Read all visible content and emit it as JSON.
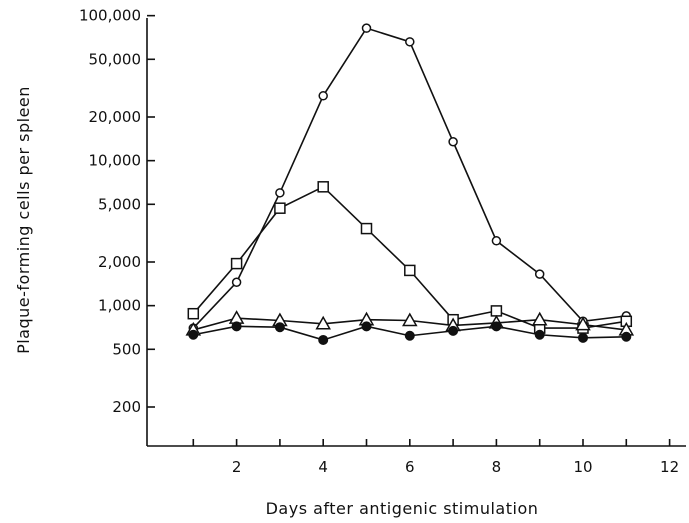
{
  "chart_data": {
    "type": "line",
    "title": "",
    "xlabel": "Days after antigenic stimulation",
    "ylabel": "Plaque-forming cells per spleen",
    "yscale": "log",
    "xlim": [
      0,
      12.7
    ],
    "ylim": [
      100,
      120000
    ],
    "grid": false,
    "legend": "none",
    "x_ticks": [
      2,
      4,
      6,
      8,
      10,
      12
    ],
    "x_tick_labels": [
      "2",
      "4",
      "6",
      "8",
      "10",
      "12"
    ],
    "y_ticks": [
      200,
      500,
      1000,
      2000,
      5000,
      10000,
      20000,
      50000,
      100000
    ],
    "y_tick_labels": [
      "200",
      "500",
      "1,000",
      "2,000",
      "5,000",
      "10,000",
      "20,000",
      "50,000",
      "100,000"
    ],
    "series": [
      {
        "marker": "open-circle",
        "color": "#111111",
        "x": [
          1,
          2,
          3,
          4,
          5,
          6,
          7,
          8,
          9,
          10,
          11
        ],
        "y": [
          700,
          1450,
          6000,
          28000,
          82000,
          66000,
          13500,
          2800,
          1650,
          780,
          850
        ]
      },
      {
        "marker": "open-square",
        "color": "#111111",
        "x": [
          1,
          2,
          3,
          4,
          5,
          6,
          7,
          8,
          9,
          10,
          11
        ],
        "y": [
          880,
          1950,
          4700,
          6600,
          3400,
          1750,
          800,
          920,
          700,
          700,
          780
        ]
      },
      {
        "marker": "open-triangle",
        "color": "#111111",
        "x": [
          1,
          2,
          3,
          4,
          5,
          6,
          7,
          8,
          9,
          10,
          11
        ],
        "y": [
          680,
          820,
          790,
          750,
          800,
          790,
          730,
          760,
          800,
          740,
          680
        ]
      },
      {
        "marker": "filled-circle",
        "color": "#111111",
        "x": [
          1,
          2,
          3,
          4,
          5,
          6,
          7,
          8,
          9,
          10,
          11
        ],
        "y": [
          630,
          720,
          710,
          580,
          720,
          620,
          670,
          720,
          630,
          600,
          610
        ]
      }
    ]
  }
}
